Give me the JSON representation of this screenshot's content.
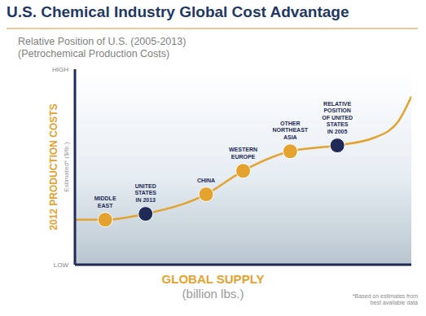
{
  "chart_data": {
    "type": "line",
    "title": "U.S. Chemical Industry Global Cost Advantage",
    "subtitle": [
      "Relative Position of U.S. (2005-2013)",
      "(Petrochemical Production Costs)"
    ],
    "ylabel": "2012 PRODUCTION COSTS",
    "ylabel_note": "Estimated* ($/lb.)",
    "xlabel": "GLOBAL SUPPLY",
    "xlabel_unit": "(billion lbs.)",
    "footnote": "*Based on estimates from\nbest available data",
    "x": [
      0,
      9,
      21,
      39,
      50,
      64,
      78,
      89,
      96,
      100
    ],
    "values": [
      23,
      23,
      26,
      36,
      48,
      58,
      61,
      65,
      73,
      86
    ],
    "point_labels": [
      null,
      "MIDDLE\nEAST",
      "UNITED\nSTATES\nIN 2013",
      "CHINA",
      "WESTERN\nEUROPE",
      "OTHER\nNORTHEAST\nASIA",
      "RELATIVE\nPOSITION\nOF UNITED\nSTATES\nIN 2005",
      null,
      null,
      null
    ],
    "colors": [
      null,
      "#e4a22e",
      "#1f2a56",
      "#e4a22e",
      "#e4a22e",
      "#e4a22e",
      "#1f2a56",
      null,
      null,
      null
    ],
    "color": "#e4a22e",
    "marker": "circle",
    "line_style": "solid",
    "xlim": [
      0,
      100
    ],
    "ylim": [
      0,
      100
    ],
    "yticks": [
      {
        "value": 0,
        "label": "LOW"
      },
      {
        "value": 100,
        "label": "HIGH"
      }
    ],
    "tick_labels": "y",
    "grid": false
  }
}
